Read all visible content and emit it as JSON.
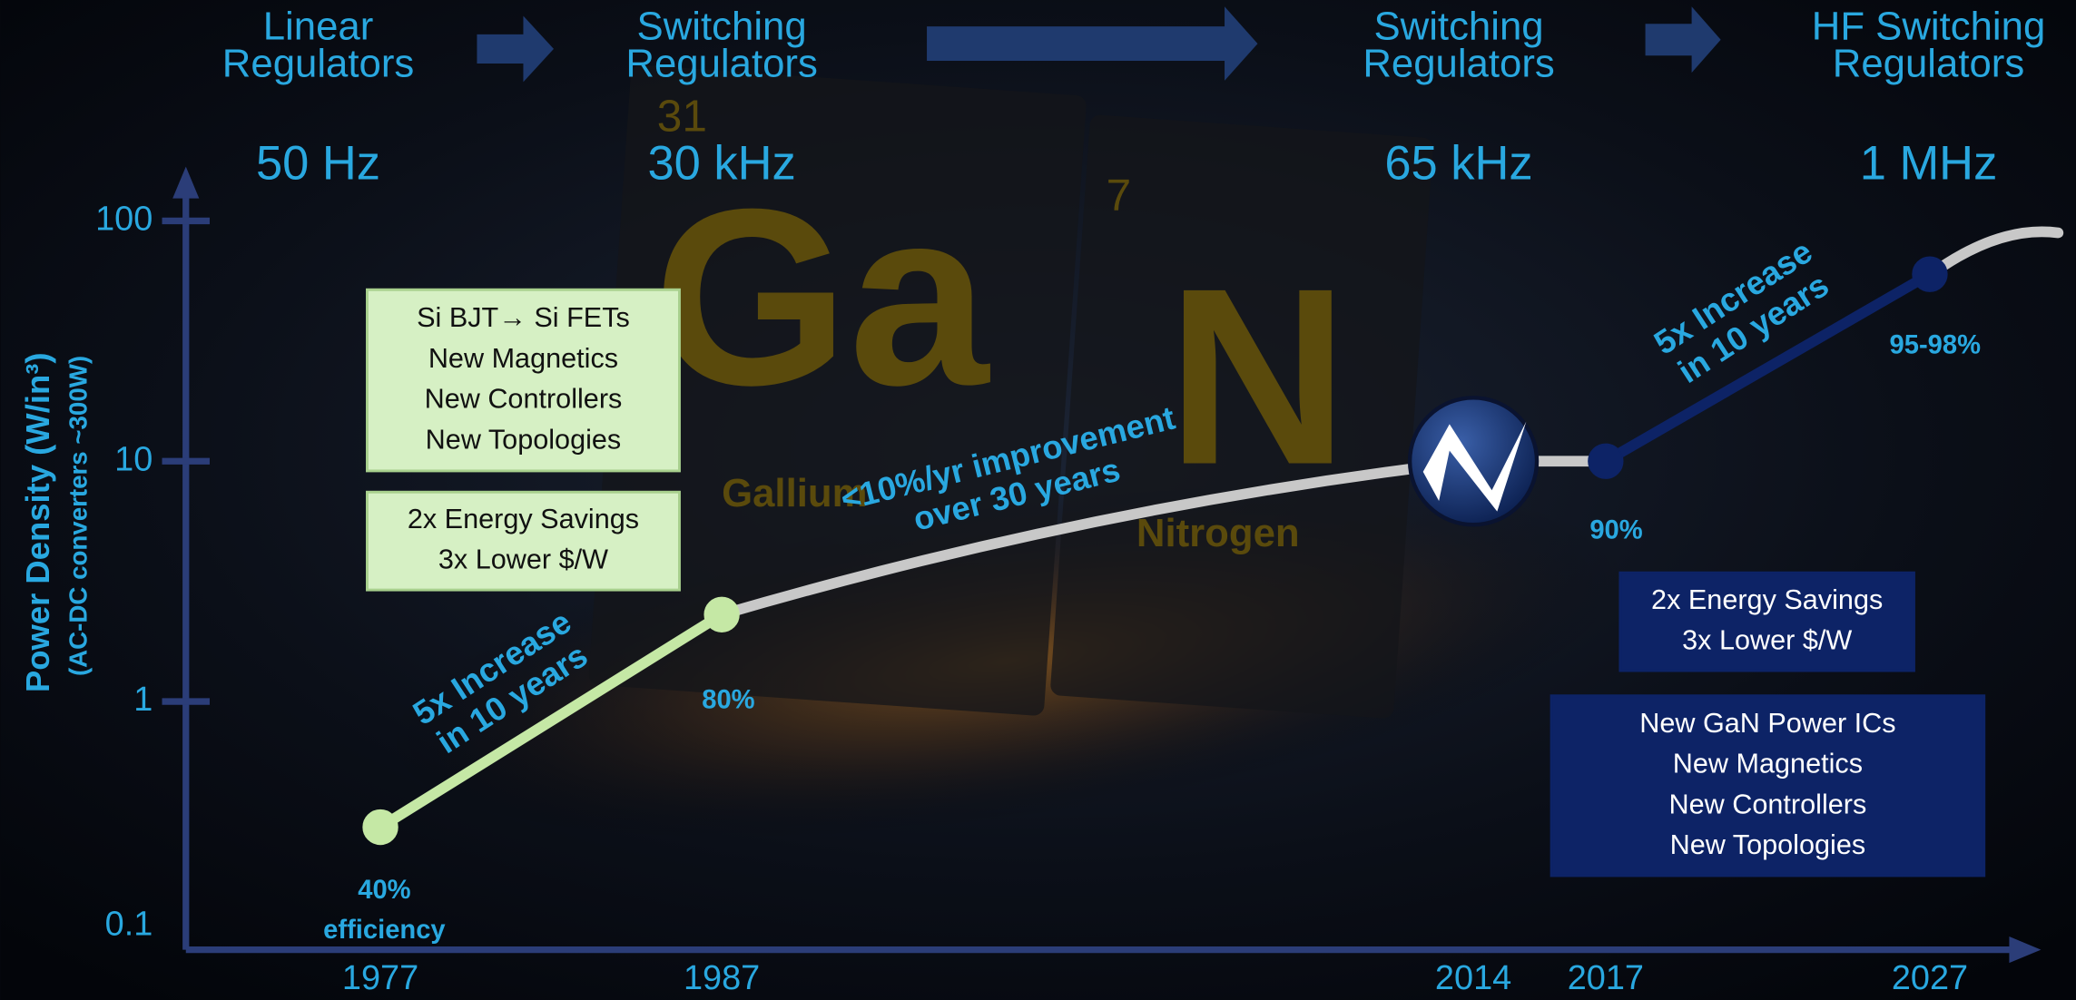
{
  "stages": [
    {
      "title": [
        "Linear",
        "Regulators"
      ],
      "frequency": "50 Hz"
    },
    {
      "title": [
        "Switching",
        "Regulators"
      ],
      "frequency": "30 kHz"
    },
    {
      "title": [
        "Switching",
        "Regulators"
      ],
      "frequency": "65 kHz"
    },
    {
      "title": [
        "HF Switching",
        "Regulators"
      ],
      "frequency": "1 MHz"
    }
  ],
  "element_tiles": [
    {
      "number": "31",
      "symbol": "Ga",
      "name": "Gallium"
    },
    {
      "number": "7",
      "symbol": "N",
      "name": "Nitrogen"
    }
  ],
  "chart_data": {
    "type": "line",
    "y_label": "Power Density (W/in³)",
    "y_sublabel": "(AC-DC converters ~300W)",
    "categories": [
      "1977",
      "1987",
      "2014",
      "2017",
      "2027"
    ],
    "values": [
      0.3,
      2.3,
      10,
      10,
      60
    ],
    "log_y": true,
    "ylim": [
      0.1,
      100
    ],
    "yticks": [
      0.1,
      1,
      10,
      100
    ],
    "segment_colors": [
      "#c5e8a5",
      "#c8c8c8",
      "#c8c8c8",
      "#0d2366"
    ],
    "marker_colors": [
      "#c5e8a5",
      "#c5e8a5",
      "#0d2366",
      "#0d2366",
      "#0d2366"
    ],
    "efficiency_labels": [
      [
        "40%",
        "efficiency"
      ],
      [
        "80%"
      ],
      [
        "90%"
      ],
      [
        "95-98%"
      ]
    ],
    "annotations": [
      [
        "5x Increase",
        "in 10 years"
      ],
      [
        "<10%/yr improvement",
        "over 30 years"
      ],
      [
        "5x Increase",
        "in 10 years"
      ]
    ]
  },
  "boxes": [
    {
      "lines": [
        "Si BJT→ Si FETs",
        "New Magnetics",
        "New Controllers",
        "New Topologies"
      ]
    },
    {
      "lines": [
        "2x Energy Savings",
        "3x Lower $/W"
      ]
    },
    {
      "lines": [
        "2x Energy Savings",
        "3x Lower $/W"
      ]
    },
    {
      "lines": [
        "New GaN Power ICs",
        "New Magnetics",
        "New Controllers",
        "New Topologies"
      ]
    }
  ]
}
